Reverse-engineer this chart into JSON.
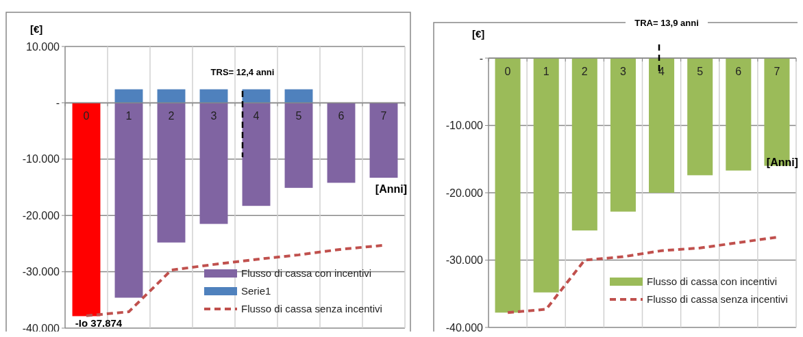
{
  "chart_data": [
    {
      "type": "bar",
      "xlabel": "[Anni]",
      "ylabel": "[€]",
      "stacked": true,
      "categories": [
        "0",
        "1",
        "2",
        "3",
        "4",
        "5",
        "6",
        "7"
      ],
      "series": [
        {
          "name": "Flusso di cassa con incentivi",
          "color": "#8064a2",
          "colors": [
            "#ff0000",
            "#8064a2",
            "#8064a2",
            "#8064a2",
            "#8064a2",
            "#8064a2",
            "#8064a2",
            "#8064a2"
          ],
          "values": [
            -37874,
            -34600,
            -24800,
            -21500,
            -18300,
            -15100,
            -14200,
            -13300
          ],
          "value_labels": [
            "-Io 37.874",
            null,
            null,
            null,
            null,
            null,
            null,
            null
          ]
        },
        {
          "name": "Serie1",
          "color": "#4f81bd",
          "values": [
            null,
            2400,
            2400,
            2400,
            2400,
            2400,
            null,
            null
          ]
        },
        {
          "type": "line",
          "name": "Flusso di cassa senza incentivi",
          "color": "#c0504d",
          "line_style": "dashed",
          "values": [
            -37800,
            -37100,
            -29700,
            -28700,
            -27800,
            -27000,
            -26000,
            -25300
          ]
        }
      ],
      "ylim": [
        -40000,
        10000
      ],
      "yticks": [
        {
          "value": 10000,
          "label": "10.000"
        },
        {
          "value": 0,
          "label": "-"
        },
        {
          "value": -10000,
          "label": "-10.000"
        },
        {
          "value": -20000,
          "label": "-20.000"
        },
        {
          "value": -30000,
          "label": "-30.000"
        },
        {
          "value": -40000,
          "label": "-40.000"
        }
      ],
      "grid": true,
      "legend": "bottom right",
      "annotations": [
        "TRS= 12,4 anni"
      ]
    },
    {
      "type": "bar",
      "xlabel": "[Anni]",
      "ylabel": "[€]",
      "categories": [
        "0",
        "1",
        "2",
        "3",
        "4",
        "5",
        "6",
        "7"
      ],
      "series": [
        {
          "name": "Flusso di cassa con incentivi",
          "color": "#9bbb59",
          "values": [
            -37800,
            -34800,
            -25600,
            -22800,
            -20000,
            -17400,
            -16700,
            -16000
          ]
        },
        {
          "type": "line",
          "name": "Flusso di cassa senza incentivi",
          "color": "#c0504d",
          "line_style": "dashed",
          "values": [
            -37800,
            -37300,
            -30000,
            -29500,
            -28600,
            -28200,
            -27400,
            -26600
          ]
        }
      ],
      "ylim": [
        -40000,
        0
      ],
      "yticks": [
        {
          "value": 0,
          "label": "-"
        },
        {
          "value": -10000,
          "label": "-10.000"
        },
        {
          "value": -20000,
          "label": "-20.000"
        },
        {
          "value": -30000,
          "label": "-30.000"
        },
        {
          "value": -40000,
          "label": "-40.000"
        }
      ],
      "grid": true,
      "legend": "bottom right",
      "annotations": [
        "TRA= 13,9 anni"
      ]
    }
  ]
}
